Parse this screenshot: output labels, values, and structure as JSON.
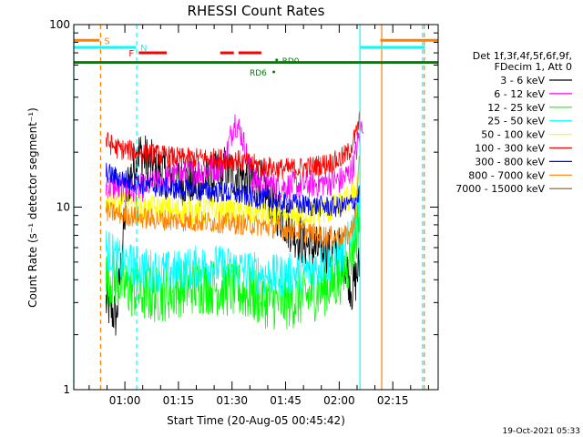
{
  "chart_data": {
    "type": "line",
    "title": "RHESSI Count Rates",
    "xlabel": "Start Time (20-Aug-05 00:45:42)",
    "ylabel": "Count Rate (s⁻¹ detector segment⁻¹)",
    "yscale": "log",
    "ylim": [
      1,
      100
    ],
    "xlim_minutes": [
      0,
      102
    ],
    "x_ticks": [
      {
        "minute": 14.3,
        "label": "01:00"
      },
      {
        "minute": 29.3,
        "label": "01:15"
      },
      {
        "minute": 44.3,
        "label": "01:30"
      },
      {
        "minute": 59.3,
        "label": "01:45"
      },
      {
        "minute": 74.3,
        "label": "02:00"
      },
      {
        "minute": 89.3,
        "label": "02:15"
      }
    ],
    "y_ticks": [
      {
        "value": 1,
        "label": "1"
      },
      {
        "value": 10,
        "label": "10"
      },
      {
        "value": 100,
        "label": "100"
      }
    ],
    "legend": {
      "header_line1": "Det 1f,3f,4f,5f,6f,9f,",
      "header_line2": "FDecim 1, Att 0",
      "placement": "right"
    },
    "series": [
      {
        "name": "3 - 6 keV",
        "color": "#000000",
        "x": [
          9,
          12,
          15,
          18,
          22,
          26,
          30,
          34,
          38,
          42,
          46,
          50,
          53,
          56,
          60,
          64,
          68,
          72,
          75,
          78,
          80
        ],
        "y": [
          3.0,
          2.5,
          13,
          20,
          17,
          15,
          14,
          13.5,
          14,
          16,
          15,
          14,
          13,
          10,
          8.0,
          6.5,
          5.8,
          5.6,
          5.8,
          3.5,
          4.8
        ]
      },
      {
        "name": "6 - 12 keV",
        "color": "#ff00ff",
        "x": [
          9,
          12,
          15,
          18,
          22,
          26,
          30,
          34,
          38,
          42,
          45,
          47,
          50,
          53,
          56,
          60,
          64,
          68,
          72,
          75,
          78,
          80,
          81
        ],
        "y": [
          13,
          12.5,
          12,
          12.5,
          13.5,
          14.5,
          15,
          15.5,
          16,
          17,
          30,
          25,
          14,
          13.5,
          13,
          13,
          13.2,
          13.5,
          13.8,
          14,
          16,
          25,
          30
        ]
      },
      {
        "name": "12 - 25 keV",
        "color": "#00ff00",
        "x": [
          9,
          12,
          15,
          18,
          22,
          26,
          30,
          34,
          38,
          42,
          46,
          50,
          54,
          58,
          62,
          66,
          70,
          74,
          77,
          79,
          80
        ],
        "y": [
          4.2,
          4.0,
          3.6,
          3.4,
          3.3,
          3.4,
          3.6,
          3.7,
          3.7,
          3.6,
          3.5,
          3.3,
          3.1,
          3.0,
          3.1,
          3.3,
          3.6,
          4.0,
          5.0,
          7.0,
          9.0
        ]
      },
      {
        "name": "25 - 50 keV",
        "color": "#00ffff",
        "x": [
          9,
          12,
          15,
          18,
          22,
          26,
          30,
          34,
          38,
          42,
          46,
          50,
          54,
          58,
          62,
          66,
          70,
          74,
          77,
          79,
          80
        ],
        "y": [
          6.0,
          5.2,
          4.9,
          4.7,
          4.5,
          4.4,
          4.5,
          4.7,
          4.8,
          4.7,
          4.6,
          4.4,
          4.2,
          4.2,
          4.3,
          4.5,
          4.9,
          5.3,
          6.5,
          9.0,
          13
        ]
      },
      {
        "name": "50 - 100 keV",
        "color": "#ffff00",
        "x": [
          9,
          12,
          15,
          18,
          22,
          26,
          30,
          34,
          38,
          42,
          46,
          50,
          54,
          58,
          62,
          66,
          70,
          74,
          77,
          79,
          80
        ],
        "y": [
          10.5,
          10.2,
          10,
          9.8,
          9.7,
          9.6,
          9.5,
          9.5,
          9.6,
          9.6,
          9.5,
          9.3,
          9.0,
          8.9,
          9.0,
          9.2,
          9.6,
          10,
          11,
          13,
          16
        ]
      },
      {
        "name": "100 - 300 keV",
        "color": "#ff0000",
        "x": [
          9,
          12,
          15,
          18,
          22,
          26,
          30,
          34,
          38,
          42,
          46,
          50,
          54,
          58,
          62,
          66,
          70,
          74,
          77,
          79,
          80
        ],
        "y": [
          23,
          21,
          20.5,
          20,
          19.5,
          19,
          18.5,
          18.5,
          18.5,
          18.3,
          18,
          17.2,
          16.6,
          16.2,
          16.3,
          16.6,
          17.2,
          18,
          20,
          25,
          30
        ]
      },
      {
        "name": "300 - 800 keV",
        "color": "#0000ff",
        "x": [
          9,
          12,
          15,
          18,
          22,
          26,
          30,
          34,
          38,
          42,
          46,
          50,
          54,
          58,
          62,
          66,
          70,
          74,
          77,
          79,
          80
        ],
        "y": [
          15.5,
          14.5,
          14,
          13.5,
          13,
          12.7,
          12.5,
          12.3,
          12.2,
          12,
          11.7,
          11.3,
          11,
          10.6,
          10.4,
          10.2,
          10.1,
          10,
          10.3,
          11,
          12
        ]
      },
      {
        "name": "800 - 7000 keV",
        "color": "#ff8000",
        "x": [
          9,
          12,
          15,
          18,
          22,
          26,
          30,
          34,
          38,
          42,
          46,
          50,
          54,
          58,
          62,
          66,
          70,
          74,
          77,
          79,
          80
        ],
        "y": [
          9.5,
          9.2,
          9.0,
          8.8,
          8.6,
          8.5,
          8.4,
          8.3,
          8.3,
          8.2,
          8.1,
          8.0,
          7.8,
          7.6,
          7.4,
          7.2,
          7.0,
          6.8,
          7.0,
          9.0,
          20
        ]
      },
      {
        "name": "7000 - 15000 keV",
        "color": "#8b5a1a",
        "x": [],
        "y": []
      }
    ],
    "annotations": [
      {
        "label": "S",
        "color": "#ff8000",
        "type": "bar",
        "x_start": 0,
        "x_end": 7.2,
        "y": 82,
        "label_x": 8.5
      },
      {
        "label": "",
        "color": "#ff8000",
        "type": "bar",
        "x_start": 85.8,
        "x_end": 102,
        "y": 82
      },
      {
        "label": "N",
        "color": "#00ffff",
        "type": "bar",
        "x_start": 0,
        "x_end": 17.4,
        "y": 75,
        "label_x": 18.6
      },
      {
        "label": "",
        "color": "#00ffff",
        "type": "bar",
        "x_start": 80.2,
        "x_end": 98.3,
        "y": 75
      },
      {
        "label": "F",
        "color": "#ff0000",
        "type": "bar",
        "x_start": 18.2,
        "x_end": 26.0,
        "y": 70,
        "label_x": 15.4
      },
      {
        "label": "",
        "color": "#ff0000",
        "type": "bar",
        "x_start": 41.0,
        "x_end": 44.8,
        "y": 70
      },
      {
        "label": "",
        "color": "#ff0000",
        "type": "bar",
        "x_start": 46.1,
        "x_end": 52.5,
        "y": 70
      },
      {
        "label": "",
        "color": "#008000",
        "type": "bar",
        "x_start": 0,
        "x_end": 102,
        "y": 62
      },
      {
        "label": "RD0",
        "color": "#008000",
        "type": "point",
        "x": 56.8,
        "y": 64,
        "label_x": 58.3
      },
      {
        "label": "RD6",
        "color": "#008000",
        "type": "point",
        "x": 56.0,
        "y": 55,
        "label_x": 49.2
      }
    ],
    "vertical_lines": [
      {
        "x": 0,
        "color": "#00ffff",
        "style": "solid"
      },
      {
        "x": 7.5,
        "color": "#ff8000",
        "style": "dashed"
      },
      {
        "x": 17.6,
        "color": "#00ffff",
        "style": "dashed"
      },
      {
        "x": 80.1,
        "color": "#00ffff",
        "style": "solid"
      },
      {
        "x": 86.2,
        "color": "#ff8000",
        "style": "solid"
      },
      {
        "x": 97.6,
        "color": "#00ffff",
        "style": "dashed"
      },
      {
        "x": 98.1,
        "color": "#ff8000",
        "style": "dashed"
      }
    ],
    "footer_timestamp": "19-Oct-2021 05:33"
  }
}
